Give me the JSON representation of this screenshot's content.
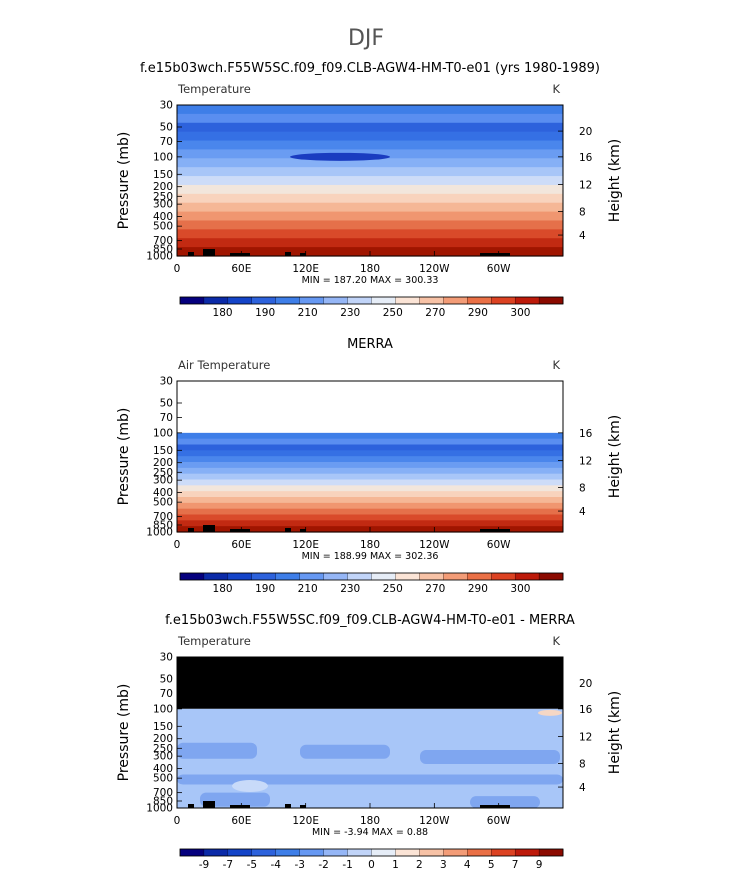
{
  "page": {
    "title": "DJF"
  },
  "chart_data": [
    {
      "type": "heatmap",
      "title": "f.e15b03wch.F55W5SC.f09_f09.CLB-AGW4-HM-T0-e01 (yrs 1980-1989)",
      "field_label": "Temperature",
      "units": "K",
      "ylabel": "Pressure (mb)",
      "ylabel_right": "Height (km)",
      "x_ticks": [
        "0",
        "60E",
        "120E",
        "180",
        "120W",
        "60W"
      ],
      "y_ticks": [
        "30",
        "50",
        "70",
        "100",
        "150",
        "200",
        "250",
        "300",
        "400",
        "500",
        "700",
        "850",
        "1000"
      ],
      "right_ticks": [
        "20",
        "16",
        "12",
        "8",
        "4"
      ],
      "stats": "MIN = 187.20   MAX = 300.33",
      "colorbar_labels": [
        "180",
        "190",
        "210",
        "230",
        "250",
        "270",
        "290",
        "300"
      ],
      "colorbar_colors": [
        "#05007e",
        "#0b2aa8",
        "#1444c8",
        "#2d62dc",
        "#3e7ee8",
        "#6698f2",
        "#95b6f6",
        "#c1d4f8",
        "#e6edf7",
        "#fbe4d6",
        "#f7c2a6",
        "#f39c77",
        "#ea7046",
        "#dc4222",
        "#bd1a0a",
        "#8b0a00"
      ],
      "min": 187.2,
      "max": 300.33,
      "dataBandTop": 30
    },
    {
      "type": "heatmap",
      "title": "MERRA",
      "field_label": "Air Temperature",
      "units": "K",
      "ylabel": "Pressure (mb)",
      "ylabel_right": "Height (km)",
      "x_ticks": [
        "0",
        "60E",
        "120E",
        "180",
        "120W",
        "60W"
      ],
      "y_ticks": [
        "30",
        "50",
        "70",
        "100",
        "150",
        "200",
        "250",
        "300",
        "400",
        "500",
        "700",
        "850",
        "1000"
      ],
      "right_ticks": [
        "16",
        "12",
        "8",
        "4"
      ],
      "stats": "MIN = 188.99   MAX = 302.36",
      "colorbar_labels": [
        "180",
        "190",
        "210",
        "230",
        "250",
        "270",
        "290",
        "300"
      ],
      "colorbar_colors": [
        "#05007e",
        "#0b2aa8",
        "#1444c8",
        "#2d62dc",
        "#3e7ee8",
        "#6698f2",
        "#95b6f6",
        "#c1d4f8",
        "#e6edf7",
        "#fbe4d6",
        "#f7c2a6",
        "#f39c77",
        "#ea7046",
        "#dc4222",
        "#bd1a0a",
        "#8b0a00"
      ],
      "min": 188.99,
      "max": 302.36,
      "dataBandTop": 100
    },
    {
      "type": "heatmap",
      "title": "f.e15b03wch.F55W5SC.f09_f09.CLB-AGW4-HM-T0-e01 - MERRA",
      "field_label": "Temperature",
      "units": "K",
      "ylabel": "Pressure (mb)",
      "ylabel_right": "Height (km)",
      "x_ticks": [
        "0",
        "60E",
        "120E",
        "180",
        "120W",
        "60W"
      ],
      "y_ticks": [
        "30",
        "50",
        "70",
        "100",
        "150",
        "200",
        "250",
        "300",
        "400",
        "500",
        "700",
        "850",
        "1000"
      ],
      "right_ticks": [
        "20",
        "16",
        "12",
        "8",
        "4"
      ],
      "stats": "MIN =   -3.94   MAX =    0.88",
      "colorbar_labels": [
        "-9",
        "-7",
        "-5",
        "-4",
        "-3",
        "-2",
        "-1",
        "0",
        "1",
        "2",
        "3",
        "4",
        "5",
        "7",
        "9"
      ],
      "colorbar_colors": [
        "#05007e",
        "#0b2aa8",
        "#1444c8",
        "#2d62dc",
        "#3e7ee8",
        "#6698f2",
        "#95b6f6",
        "#c1d4f8",
        "#e6edf7",
        "#fbe4d6",
        "#f7c2a6",
        "#f39c77",
        "#ea7046",
        "#dc4222",
        "#bd1a0a",
        "#8b0a00"
      ],
      "min": -3.94,
      "max": 0.88,
      "dataBandTop": 100
    }
  ]
}
